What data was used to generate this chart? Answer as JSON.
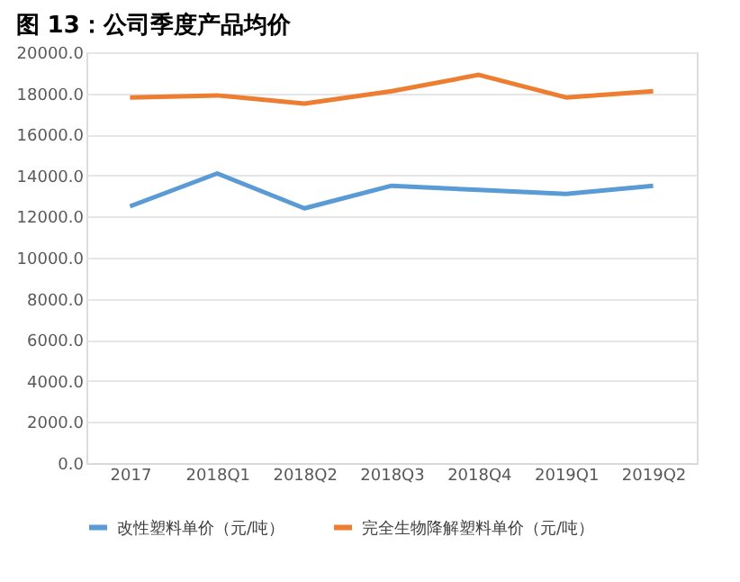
{
  "chart_data": {
    "type": "line",
    "title": "图 13：公司季度产品均价",
    "categories": [
      "2017",
      "2018Q1",
      "2018Q2",
      "2018Q3",
      "2018Q4",
      "2019Q1",
      "2019Q2"
    ],
    "series": [
      {
        "name": "改性塑料单价（元/吨）",
        "color": "#5b9bd5",
        "values": [
          12500,
          14100,
          12400,
          13500,
          13300,
          13100,
          13500
        ]
      },
      {
        "name": "完全生物降解塑料单价（元/吨）",
        "color": "#ed7d31",
        "values": [
          17800,
          17900,
          17500,
          18100,
          18900,
          17800,
          18100
        ]
      }
    ],
    "ylim": [
      0,
      20000
    ],
    "yticks": [
      {
        "value": 0,
        "label": "0.0"
      },
      {
        "value": 2000,
        "label": "2000.0"
      },
      {
        "value": 4000,
        "label": "4000.0"
      },
      {
        "value": 6000,
        "label": "6000.0"
      },
      {
        "value": 8000,
        "label": "8000.0"
      },
      {
        "value": 10000,
        "label": "10000.0"
      },
      {
        "value": 12000,
        "label": "12000.0"
      },
      {
        "value": 14000,
        "label": "14000.0"
      },
      {
        "value": 16000,
        "label": "16000.0"
      },
      {
        "value": 18000,
        "label": "18000.0"
      },
      {
        "value": 20000,
        "label": "20000.0"
      }
    ],
    "grid": "y",
    "legend": "bottom",
    "marker": "none",
    "line_style": "solid"
  }
}
